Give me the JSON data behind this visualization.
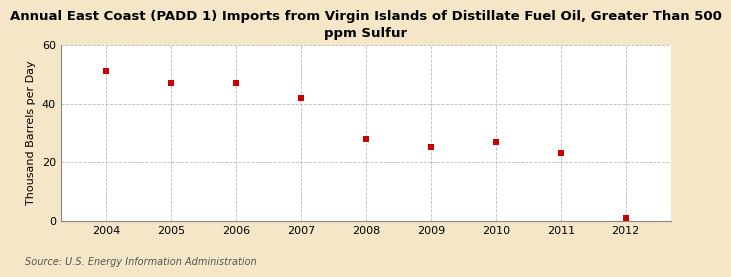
{
  "title": "Annual East Coast (PADD 1) Imports from Virgin Islands of Distillate Fuel Oil, Greater Than 500\nppm Sulfur",
  "years": [
    2004,
    2005,
    2006,
    2007,
    2008,
    2009,
    2010,
    2011,
    2012
  ],
  "values": [
    51,
    47,
    47,
    42,
    28,
    25,
    27,
    23,
    1
  ],
  "ylabel": "Thousand Barrels per Day",
  "ylim": [
    0,
    60
  ],
  "yticks": [
    0,
    20,
    40,
    60
  ],
  "source": "Source: U.S. Energy Information Administration",
  "marker_color": "#cc0000",
  "figure_bg_color": "#f5e6c8",
  "plot_bg_color": "#ffffff",
  "grid_color": "#bbbbbb",
  "title_fontsize": 9.5,
  "label_fontsize": 8,
  "tick_fontsize": 8,
  "source_fontsize": 7
}
